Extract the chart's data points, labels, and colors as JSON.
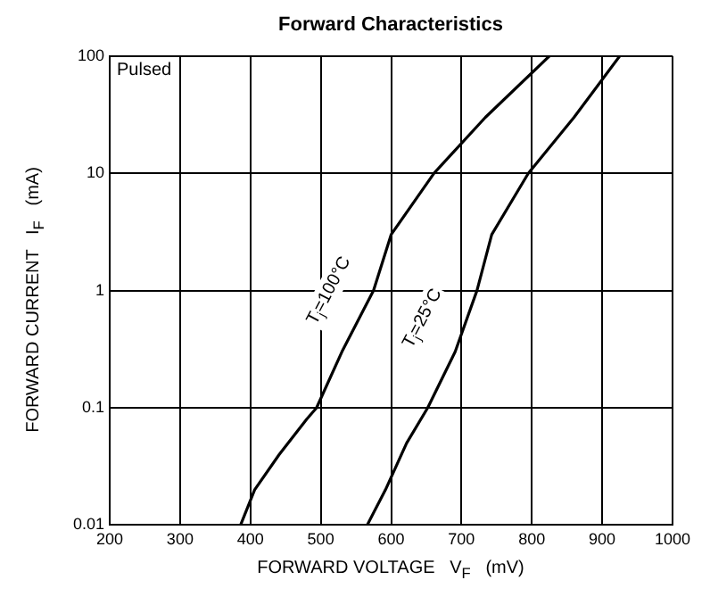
{
  "chart_data": {
    "type": "line",
    "title": "Forward   Characteristics",
    "xlabel": "FORWARD VOLTAGE   V$_{F}$   (mV)",
    "ylabel": "FORWARD CURRENT   I$_{F}$   (mA)",
    "series": [
      {
        "color": "#000000",
        "x": [
          386,
          406,
          441,
          480,
          494,
          530,
          575,
          600,
          661,
          734,
          825
        ],
        "values": [
          0.01,
          0.02,
          0.04,
          0.08,
          0.1,
          0.3,
          1,
          3,
          10,
          30,
          100
        ]
      },
      {
        "color": "#000000",
        "x": [
          566,
          592,
          622,
          652,
          691,
          722,
          743,
          795,
          860,
          925
        ],
        "values": [
          0.01,
          0.02,
          0.05,
          0.1,
          0.3,
          1,
          3,
          10,
          30,
          100
        ]
      }
    ],
    "xlim": [
      200,
      1000
    ],
    "xticks": [
      200,
      300,
      400,
      500,
      600,
      700,
      800,
      900,
      1000
    ],
    "ylim": [
      0.01,
      100
    ],
    "yticks": [
      0.01,
      0.1,
      1,
      10,
      100
    ],
    "log": "y",
    "grid": true,
    "marker": "none",
    "line_style": "solid",
    "legend": false,
    "annotations": [
      "Pulsed",
      {
        "text": "T$_{j}$=100°C",
        "x": 575,
        "y": 1
      },
      {
        "text": "T$_{j}$=25°C",
        "x": 708,
        "y": 0.58
      }
    ]
  }
}
